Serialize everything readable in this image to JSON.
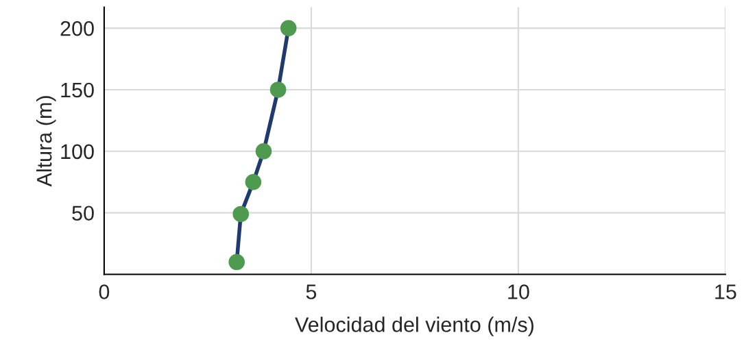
{
  "chart_data": {
    "type": "line",
    "xlabel": "Velocidad del viento (m/s)",
    "ylabel": "Altura (m)",
    "x": [
      3.2,
      3.3,
      3.6,
      3.85,
      4.2,
      4.45
    ],
    "series": [
      {
        "color": "#1f3a6e",
        "marker": "none",
        "values": [
          10,
          49,
          75,
          100,
          150,
          200
        ]
      },
      {
        "type": "scatter",
        "marker": "circle",
        "color": "#4e9a4f",
        "values": [
          10,
          49,
          75,
          100,
          150,
          200
        ]
      }
    ],
    "xlim": [
      0,
      15
    ],
    "xticks": [
      0,
      5,
      10,
      15
    ],
    "ylim": [
      0,
      217
    ],
    "yticks": [
      50,
      100,
      150,
      200
    ],
    "grid": true,
    "line_style": "solid"
  }
}
